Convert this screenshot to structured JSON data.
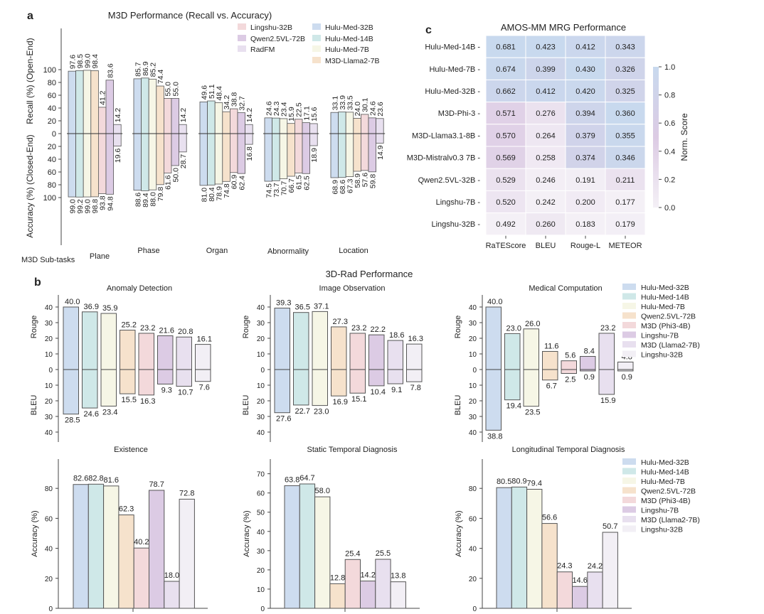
{
  "panel_labels": {
    "a": "a",
    "b": "b",
    "c": "c"
  },
  "colors": {
    "Hulu-Med-32B": "#cddcef",
    "Hulu-Med-14B": "#cfe8e8",
    "Hulu-Med-7B": "#f6f6e6",
    "M3D-Llama2-7B": "#f6e2cc",
    "Lingshu-32B_a": "#f3d9db",
    "Qwen2.5VL-72B_a": "#dccbe4",
    "RadFM": "#e8e0ef",
    "Qwen2.5VL-72B_b": "#f6e2cc",
    "M3D (Phi3-4B)": "#f3d9db",
    "Lingshu-7B": "#dccbe4",
    "M3D (Llama2-7B)": "#e8e0ef",
    "Lingshu-32B_b": "#f2eff5"
  },
  "chart_data": [
    {
      "id": "m3d",
      "type": "bar",
      "title": "M3D Performance (Recall vs. Accuracy)",
      "ylabel_top": "Recall (%) (Open-End)",
      "ylabel_bottom": "Accuracy (%) (Closed-End)",
      "xlabel": "M3D Sub-tasks",
      "yticks": [
        0,
        20,
        40,
        60,
        80,
        100
      ],
      "ylim": [
        0,
        110
      ],
      "categories": [
        "Plane",
        "Phase",
        "Organ",
        "Abnormality",
        "Location"
      ],
      "legend": {
        "placement": "top-right",
        "columns": [
          [
            "Lingshu-32B",
            "Qwen2.5VL-72B",
            "RadFM"
          ],
          [
            "Hulu-Med-32B",
            "Hulu-Med-14B",
            "Hulu-Med-7B",
            "M3D-Llama2-7B"
          ]
        ]
      },
      "series": [
        {
          "name": "Hulu-Med-32B",
          "color_key": "Hulu-Med-32B",
          "recall": [
            97.6,
            85.7,
            49.6,
            24.6,
            33.1
          ],
          "accuracy": [
            99.0,
            88.6,
            81.0,
            74.5,
            68.9
          ]
        },
        {
          "name": "Hulu-Med-14B",
          "color_key": "Hulu-Med-14B",
          "recall": [
            98.5,
            86.9,
            51.1,
            24.3,
            33.9
          ],
          "accuracy": [
            99.2,
            89.4,
            80.4,
            73.7,
            68.6
          ]
        },
        {
          "name": "Hulu-Med-7B",
          "color_key": "Hulu-Med-7B",
          "recall": [
            99.0,
            85.2,
            48.4,
            23.4,
            33.5
          ],
          "accuracy": [
            99.0,
            88.0,
            78.9,
            70.7,
            67.3
          ]
        },
        {
          "name": "M3D-Llama2-7B",
          "color_key": "M3D-Llama2-7B",
          "recall": [
            98.4,
            74.4,
            34.2,
            15.9,
            24.0
          ],
          "accuracy": [
            98.8,
            79.8,
            74.8,
            66.7,
            58.9
          ]
        },
        {
          "name": "Lingshu-32B",
          "color_key": "Lingshu-32B_a",
          "recall": [
            41.2,
            55.0,
            38.8,
            22.5,
            30.1
          ],
          "accuracy": [
            93.8,
            61.6,
            60.9,
            61.5,
            57.6
          ]
        },
        {
          "name": "Qwen2.5VL-72B",
          "color_key": "Qwen2.5VL-72B_a",
          "recall": [
            83.6,
            55.0,
            32.7,
            17.1,
            24.6
          ],
          "accuracy": [
            94.8,
            50.0,
            62.4,
            62.5,
            59.8
          ]
        },
        {
          "name": "RadFM",
          "color_key": "RadFM",
          "recall": [
            14.2,
            14.2,
            14.2,
            15.6,
            23.6
          ],
          "accuracy": [
            19.6,
            28.7,
            16.8,
            18.9,
            14.9
          ]
        }
      ]
    },
    {
      "id": "amos",
      "type": "heatmap",
      "title": "AMOS-MM MRG Performance",
      "columns": [
        "RaTEScore",
        "BLEU",
        "Rouge-L",
        "METEOR"
      ],
      "rows": [
        "Hulu-Med-14B",
        "Hulu-Med-7B",
        "Hulu-Med-32B",
        "M3D-Phi-3",
        "M3D-Llama3.1-8B",
        "M3D-Mistralv0.3 7B",
        "Qwen2.5VL-32B",
        "Lingshu-7B",
        "Lingshu-32B"
      ],
      "values": [
        [
          0.681,
          0.423,
          0.412,
          0.343
        ],
        [
          0.674,
          0.399,
          0.43,
          0.326
        ],
        [
          0.662,
          0.412,
          0.42,
          0.325
        ],
        [
          0.571,
          0.276,
          0.394,
          0.36
        ],
        [
          0.57,
          0.264,
          0.379,
          0.355
        ],
        [
          0.569,
          0.258,
          0.374,
          0.346
        ],
        [
          0.529,
          0.246,
          0.191,
          0.211
        ],
        [
          0.52,
          0.242,
          0.2,
          0.177
        ],
        [
          0.492,
          0.26,
          0.183,
          0.179
        ]
      ],
      "colorbar": {
        "label": "Norm. Score",
        "ticks": [
          "1.0",
          "0.8",
          "0.6",
          "0.4",
          "0.2",
          "0.0"
        ],
        "range": [
          0,
          1
        ],
        "stops": [
          "#f4f0f6",
          "#dccbe4",
          "#c8d9ee"
        ]
      }
    },
    {
      "id": "rad-rouge-bleu",
      "type": "bar",
      "suptitle": "3D-Rad Performance",
      "ylabel_top": "Rouge",
      "ylabel_bottom": "BLEU",
      "yticks": [
        0,
        10,
        20,
        30,
        40
      ],
      "ylim": [
        0,
        45
      ],
      "models": [
        "Hulu-Med-32B",
        "Hulu-Med-14B",
        "Hulu-Med-7B",
        "Qwen2.5VL-72B",
        "M3D (Phi3-4B)",
        "Lingshu-7B",
        "M3D (Llama2-7B)",
        "Lingshu-32B"
      ],
      "color_keys": [
        "Hulu-Med-32B",
        "Hulu-Med-14B",
        "Hulu-Med-7B",
        "Qwen2.5VL-72B_b",
        "M3D (Phi3-4B)",
        "Lingshu-7B",
        "M3D (Llama2-7B)",
        "Lingshu-32B_b"
      ],
      "legend": {
        "placement": "right"
      },
      "panels": [
        {
          "title": "Anomaly Detection",
          "rouge": [
            40.0,
            36.9,
            35.9,
            25.2,
            23.2,
            21.6,
            20.8,
            16.1
          ],
          "bleu": [
            28.5,
            24.6,
            23.4,
            15.5,
            16.3,
            9.3,
            10.7,
            7.6
          ]
        },
        {
          "title": "Image Observation",
          "rouge": [
            39.3,
            36.5,
            37.1,
            27.3,
            23.2,
            22.2,
            18.6,
            16.3
          ],
          "bleu": [
            27.6,
            22.7,
            23.0,
            16.9,
            15.1,
            10.4,
            9.1,
            7.8
          ]
        },
        {
          "title": "Medical Computation",
          "rouge": [
            40.0,
            23.0,
            26.0,
            11.6,
            5.6,
            8.4,
            23.2,
            4.8
          ],
          "bleu": [
            38.8,
            19.4,
            23.5,
            6.7,
            2.5,
            0.9,
            15.9,
            0.9
          ]
        }
      ]
    },
    {
      "id": "rad-accuracy",
      "type": "bar",
      "ylabel": "Accuracy (%)",
      "models": [
        "Hulu-Med-32B",
        "Hulu-Med-14B",
        "Hulu-Med-7B",
        "Qwen2.5VL-72B",
        "M3D (Phi3-4B)",
        "Lingshu-7B",
        "M3D (Llama2-7B)",
        "Lingshu-32B"
      ],
      "color_keys": [
        "Hulu-Med-32B",
        "Hulu-Med-14B",
        "Hulu-Med-7B",
        "Qwen2.5VL-72B_b",
        "M3D (Phi3-4B)",
        "Lingshu-7B",
        "M3D (Llama2-7B)",
        "Lingshu-32B_b"
      ],
      "legend": {
        "placement": "right"
      },
      "panels": [
        {
          "title": "Existence",
          "yticks": [
            0,
            20,
            40,
            60,
            80
          ],
          "ylim": [
            0,
            100
          ],
          "values": [
            82.6,
            82.8,
            81.6,
            62.3,
            40.2,
            78.7,
            18.0,
            72.8
          ]
        },
        {
          "title": "Static Temporal Diagnosis",
          "yticks": [
            0,
            10,
            20,
            30,
            40,
            50,
            60,
            70
          ],
          "ylim": [
            0,
            78
          ],
          "values": [
            63.8,
            64.7,
            58.0,
            12.8,
            25.4,
            14.2,
            25.5,
            13.8
          ]
        },
        {
          "title": "Longitudinal Temporal Diagnosis",
          "yticks": [
            0,
            20,
            40,
            60,
            80
          ],
          "ylim": [
            0,
            100
          ],
          "values": [
            80.5,
            80.9,
            79.4,
            56.6,
            24.3,
            14.6,
            24.2,
            50.7
          ]
        }
      ]
    }
  ]
}
